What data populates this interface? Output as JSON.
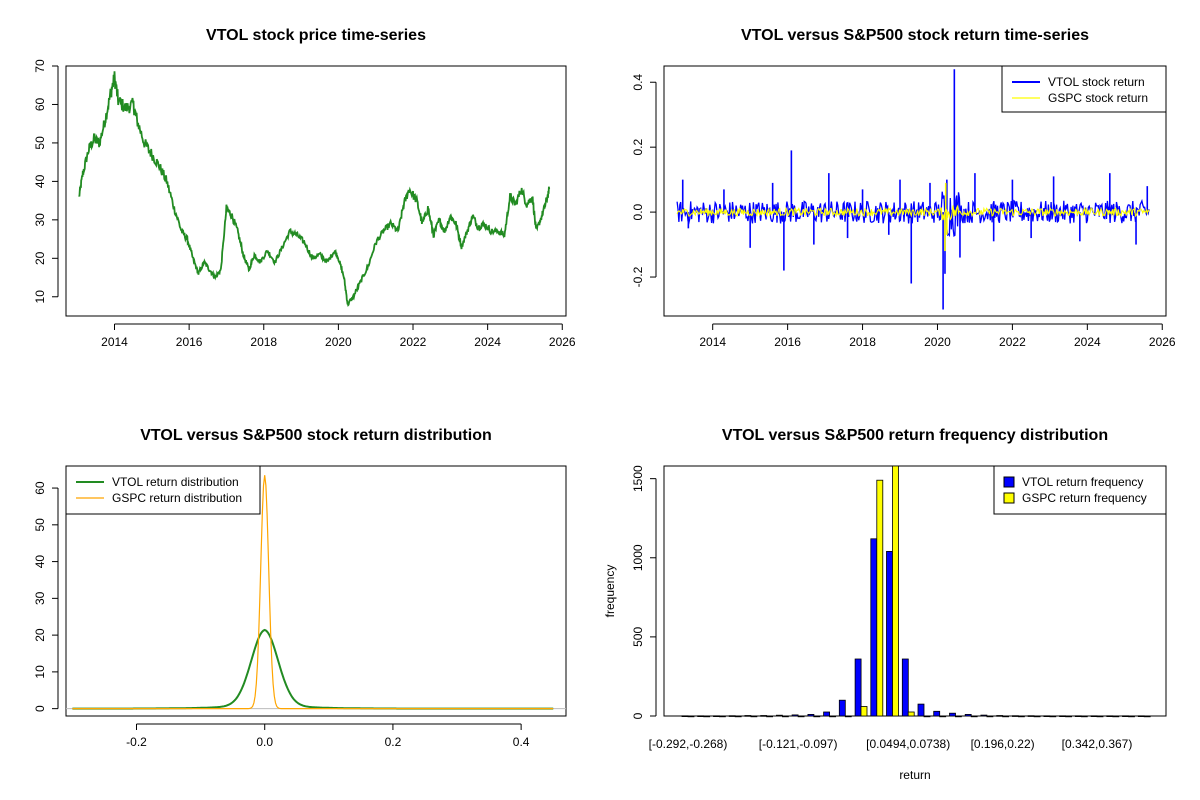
{
  "chart_data": [
    {
      "id": "price",
      "type": "line",
      "title": "VTOL stock price time-series",
      "xlabel": "",
      "ylabel": "",
      "xlim": [
        2012.7,
        2026.1
      ],
      "ylim": [
        5,
        70
      ],
      "x_ticks": [
        2014,
        2016,
        2018,
        2020,
        2022,
        2024,
        2026
      ],
      "x_tick_labels": [
        "2014",
        "2016",
        "2018",
        "2020",
        "2022",
        "2024",
        "2026"
      ],
      "y_ticks": [
        10,
        20,
        30,
        40,
        50,
        60,
        70
      ],
      "y_tick_labels": [
        "10",
        "20",
        "30",
        "40",
        "50",
        "60",
        "70"
      ],
      "series": [
        {
          "name": "VTOL price",
          "color": "#228B22",
          "points": [
            [
              2013.05,
              36
            ],
            [
              2013.15,
              42
            ],
            [
              2013.3,
              48
            ],
            [
              2013.45,
              51
            ],
            [
              2013.6,
              50
            ],
            [
              2013.75,
              56
            ],
            [
              2013.9,
              63
            ],
            [
              2014.0,
              67
            ],
            [
              2014.1,
              61
            ],
            [
              2014.3,
              59
            ],
            [
              2014.5,
              60
            ],
            [
              2014.6,
              56
            ],
            [
              2014.8,
              50
            ],
            [
              2015.0,
              47
            ],
            [
              2015.2,
              44
            ],
            [
              2015.4,
              40
            ],
            [
              2015.6,
              33
            ],
            [
              2015.8,
              27
            ],
            [
              2015.95,
              25
            ],
            [
              2016.1,
              20
            ],
            [
              2016.25,
              16
            ],
            [
              2016.4,
              19
            ],
            [
              2016.55,
              17
            ],
            [
              2016.7,
              15
            ],
            [
              2016.85,
              17
            ],
            [
              2017.0,
              33
            ],
            [
              2017.15,
              31
            ],
            [
              2017.3,
              27
            ],
            [
              2017.45,
              21
            ],
            [
              2017.6,
              17
            ],
            [
              2017.75,
              21
            ],
            [
              2017.9,
              19
            ],
            [
              2018.1,
              22
            ],
            [
              2018.3,
              19
            ],
            [
              2018.5,
              23
            ],
            [
              2018.7,
              27
            ],
            [
              2018.9,
              26
            ],
            [
              2019.1,
              24
            ],
            [
              2019.3,
              20
            ],
            [
              2019.5,
              21
            ],
            [
              2019.7,
              19
            ],
            [
              2019.9,
              22
            ],
            [
              2020.0,
              20
            ],
            [
              2020.15,
              15
            ],
            [
              2020.25,
              8
            ],
            [
              2020.4,
              10
            ],
            [
              2020.6,
              14
            ],
            [
              2020.8,
              18
            ],
            [
              2021.0,
              24
            ],
            [
              2021.2,
              27
            ],
            [
              2021.4,
              29
            ],
            [
              2021.6,
              27
            ],
            [
              2021.75,
              34
            ],
            [
              2021.9,
              38
            ],
            [
              2022.1,
              35
            ],
            [
              2022.25,
              29
            ],
            [
              2022.4,
              33
            ],
            [
              2022.55,
              26
            ],
            [
              2022.7,
              30
            ],
            [
              2022.85,
              27
            ],
            [
              2023.0,
              31
            ],
            [
              2023.15,
              29
            ],
            [
              2023.3,
              23
            ],
            [
              2023.45,
              27
            ],
            [
              2023.6,
              31
            ],
            [
              2023.75,
              28
            ],
            [
              2023.9,
              29
            ],
            [
              2024.1,
              27
            ],
            [
              2024.3,
              27
            ],
            [
              2024.45,
              26
            ],
            [
              2024.6,
              36
            ],
            [
              2024.75,
              34
            ],
            [
              2024.9,
              38
            ],
            [
              2025.05,
              34
            ],
            [
              2025.2,
              36
            ],
            [
              2025.3,
              27
            ],
            [
              2025.45,
              31
            ],
            [
              2025.55,
              34
            ],
            [
              2025.65,
              38
            ]
          ]
        }
      ]
    },
    {
      "id": "returns",
      "type": "line",
      "title": "VTOL versus S&P500 stock return time-series",
      "xlabel": "",
      "ylabel": "",
      "xlim": [
        2012.7,
        2026.1
      ],
      "ylim": [
        -0.32,
        0.45
      ],
      "x_ticks": [
        2014,
        2016,
        2018,
        2020,
        2022,
        2024,
        2026
      ],
      "x_tick_labels": [
        "2014",
        "2016",
        "2018",
        "2020",
        "2022",
        "2024",
        "2026"
      ],
      "y_ticks": [
        -0.2,
        0.0,
        0.2,
        0.4
      ],
      "y_tick_labels": [
        "-0.2",
        "0.0",
        "0.2",
        "0.4"
      ],
      "legend": {
        "position": "top-right",
        "entries": [
          "VTOL stock return",
          "GSPC stock return"
        ]
      },
      "series": [
        {
          "name": "VTOL stock return",
          "color": "#0000FF",
          "spikes": [
            [
              2013.2,
              0.1
            ],
            [
              2013.35,
              -0.05
            ],
            [
              2014.3,
              0.07
            ],
            [
              2015.0,
              -0.11
            ],
            [
              2015.6,
              0.09
            ],
            [
              2015.9,
              -0.18
            ],
            [
              2016.1,
              0.19
            ],
            [
              2016.7,
              -0.1
            ],
            [
              2017.1,
              0.12
            ],
            [
              2017.6,
              -0.08
            ],
            [
              2018.0,
              0.07
            ],
            [
              2018.7,
              -0.07
            ],
            [
              2019.0,
              0.1
            ],
            [
              2019.3,
              -0.22
            ],
            [
              2019.8,
              0.09
            ],
            [
              2020.15,
              -0.3
            ],
            [
              2020.2,
              -0.19
            ],
            [
              2020.25,
              0.1
            ],
            [
              2020.45,
              0.44
            ],
            [
              2020.6,
              -0.14
            ],
            [
              2021.0,
              0.12
            ],
            [
              2021.5,
              -0.09
            ],
            [
              2022.0,
              0.1
            ],
            [
              2022.5,
              -0.08
            ],
            [
              2023.1,
              0.11
            ],
            [
              2023.8,
              -0.09
            ],
            [
              2024.6,
              0.12
            ],
            [
              2025.3,
              -0.1
            ],
            [
              2025.6,
              0.08
            ]
          ],
          "noise_amplitude": 0.035
        },
        {
          "name": "GSPC stock return",
          "color": "#FFFF00",
          "spikes": [
            [
              2020.2,
              -0.12
            ],
            [
              2020.22,
              0.09
            ],
            [
              2020.25,
              -0.07
            ]
          ],
          "noise_amplitude": 0.012
        }
      ]
    },
    {
      "id": "density",
      "type": "line",
      "title": "VTOL versus S&P500 stock return distribution",
      "xlabel": "",
      "ylabel": "",
      "xlim": [
        -0.31,
        0.47
      ],
      "ylim": [
        -2,
        66
      ],
      "x_ticks": [
        -0.2,
        0.0,
        0.2,
        0.4
      ],
      "x_tick_labels": [
        "-0.2",
        "0.0",
        "0.2",
        "0.4"
      ],
      "y_ticks": [
        0,
        10,
        20,
        30,
        40,
        50,
        60
      ],
      "y_tick_labels": [
        "0",
        "10",
        "20",
        "30",
        "40",
        "50",
        "60"
      ],
      "legend": {
        "position": "top-left",
        "entries": [
          "VTOL return distribution",
          "GSPC return distribution"
        ]
      },
      "series": [
        {
          "name": "VTOL return distribution",
          "color": "#228B22",
          "peak": 19.8,
          "center": 0.0,
          "scale": 0.021,
          "x_range": [
            -0.3,
            0.45
          ]
        },
        {
          "name": "GSPC return distribution",
          "color": "#FFA500",
          "peak": 63.5,
          "center": 0.0,
          "scale": 0.0062,
          "x_range": [
            -0.3,
            0.45
          ]
        }
      ]
    },
    {
      "id": "frequency",
      "type": "bar",
      "title": "VTOL versus S&P500 return frequency distribution",
      "xlabel": "return",
      "ylabel": "frequency",
      "ylim": [
        0,
        1580
      ],
      "y_ticks": [
        0,
        500,
        1000,
        1500
      ],
      "y_tick_labels": [
        "0",
        "500",
        "1000",
        "1500"
      ],
      "category_tick_labels": [
        "[-0.292,-0.268)",
        "[-0.121,-0.097)",
        "[0.0494,0.0738)",
        "[0.196,0.22)",
        "[0.342,0.367)"
      ],
      "category_tick_positions": [
        0,
        7,
        14,
        20,
        26
      ],
      "legend": {
        "position": "top-right",
        "entries": [
          "VTOL return frequency",
          "GSPC return frequency"
        ]
      },
      "series": [
        {
          "name": "VTOL return frequency",
          "color": "#0000FF",
          "values": [
            1,
            1,
            1,
            2,
            3,
            3,
            5,
            7,
            10,
            25,
            100,
            360,
            1120,
            1040,
            360,
            75,
            30,
            18,
            10,
            6,
            3,
            2,
            2,
            1,
            1,
            1,
            1,
            1,
            1,
            1
          ]
        },
        {
          "name": "GSPC return frequency",
          "color": "#FFFF00",
          "values": [
            0,
            0,
            0,
            0,
            0,
            0,
            0,
            0,
            0,
            0,
            0,
            60,
            1490,
            1580,
            25,
            0,
            0,
            0,
            0,
            0,
            0,
            0,
            0,
            0,
            0,
            0,
            0,
            0,
            0,
            0
          ]
        }
      ]
    }
  ]
}
